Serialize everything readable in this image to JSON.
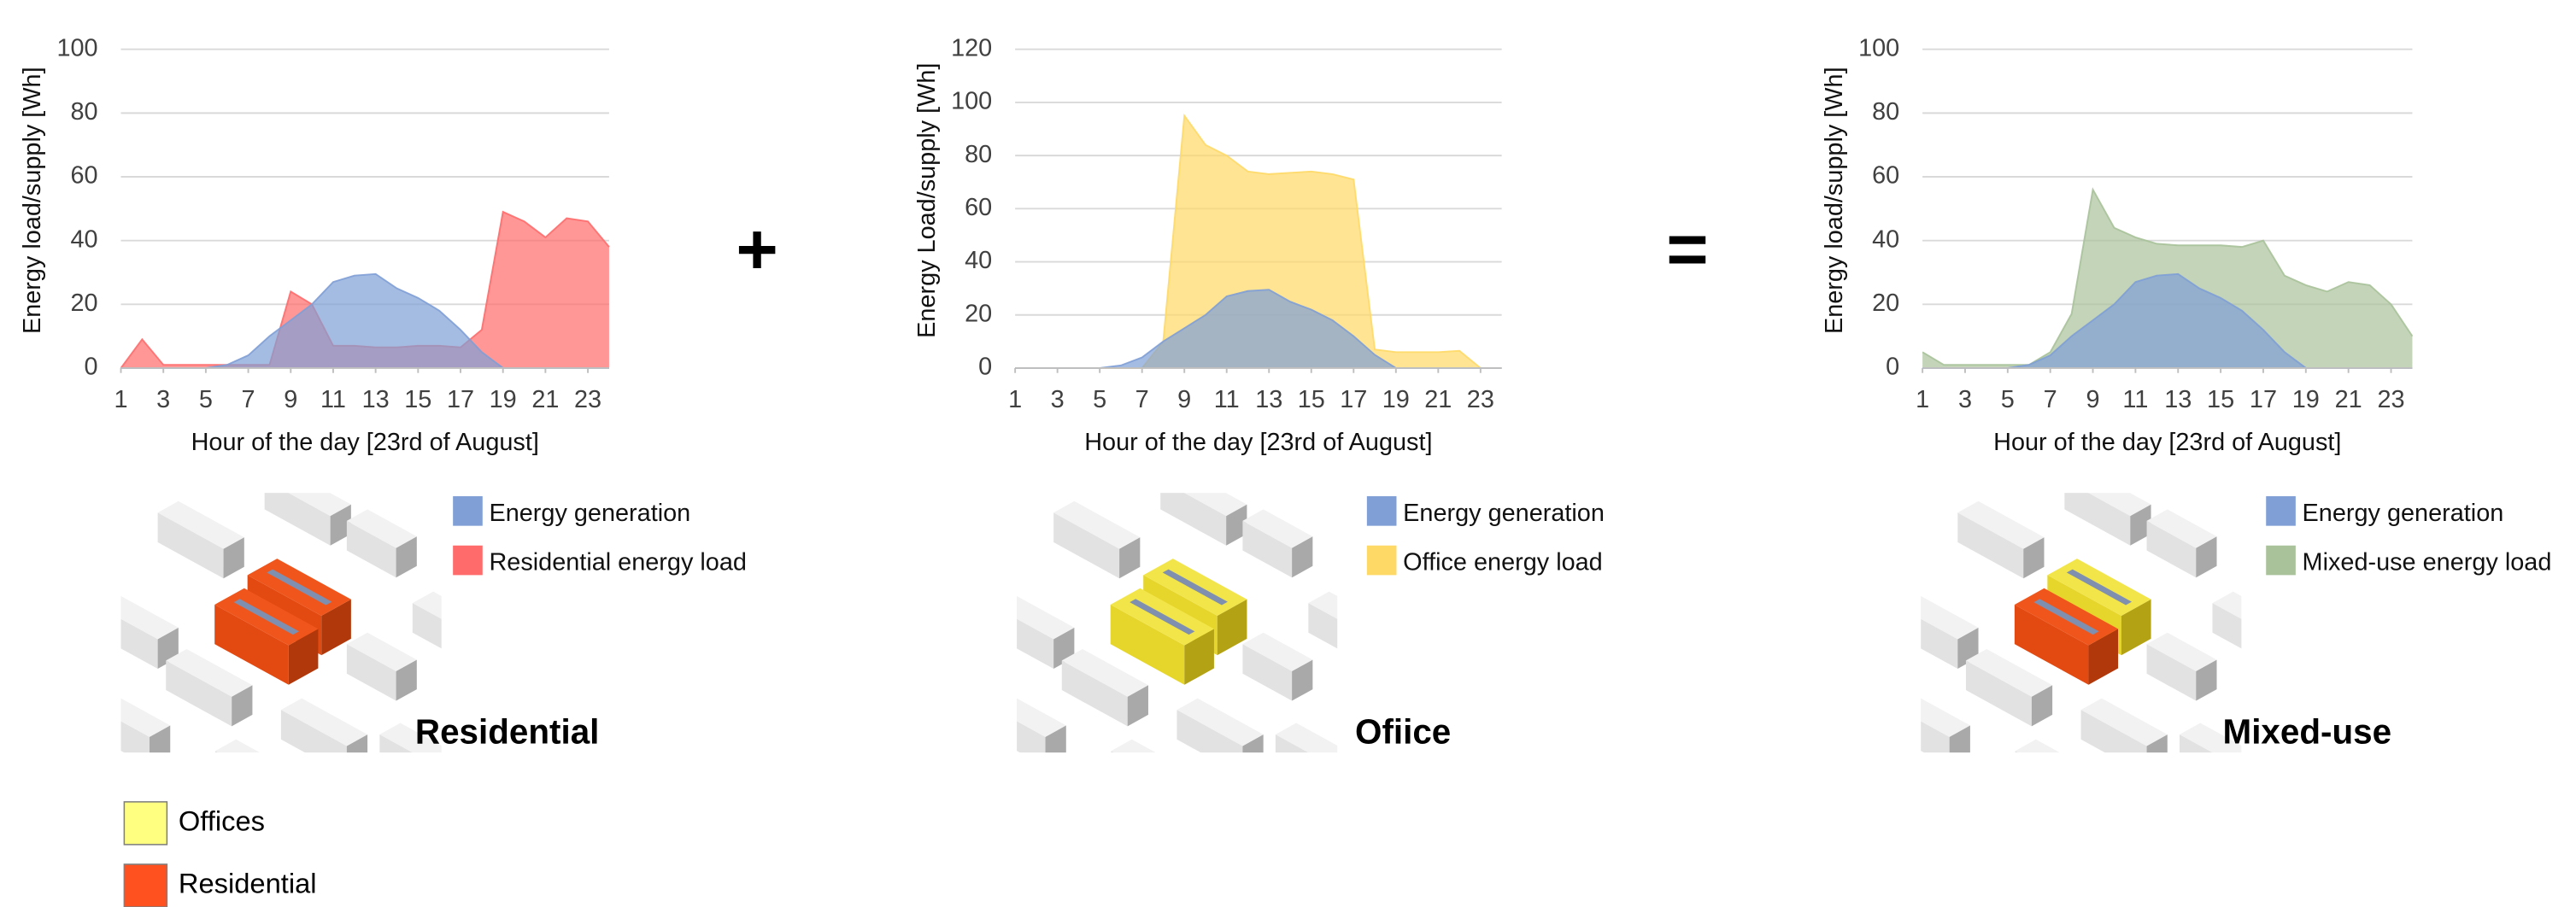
{
  "chart_data": [
    {
      "type": "area",
      "y_label": "Energy load/supply [Wh]",
      "x_label": "Hour of the day [23rd of August]",
      "x": [
        1,
        2,
        3,
        4,
        5,
        6,
        7,
        8,
        9,
        10,
        11,
        12,
        13,
        14,
        15,
        16,
        17,
        18,
        19,
        20,
        21,
        22,
        23,
        24
      ],
      "xlim": [
        1,
        24
      ],
      "xticks": [
        1,
        3,
        5,
        7,
        9,
        11,
        13,
        15,
        17,
        19,
        21,
        23
      ],
      "ylim": [
        0,
        100
      ],
      "yticks": [
        0,
        20,
        40,
        60,
        80,
        100
      ],
      "grid": true,
      "series": [
        {
          "name": "Energy generation",
          "color": "#7f9fd6",
          "values": [
            0,
            0,
            0,
            0,
            0,
            1,
            4,
            10,
            15,
            20,
            27,
            29,
            29.5,
            25,
            22,
            18,
            12,
            5,
            0,
            0,
            0,
            0,
            0,
            0
          ]
        },
        {
          "name": "Residential energy load",
          "color": "#ff6b6b",
          "values": [
            0,
            9,
            1,
            1,
            1,
            1,
            1,
            1,
            24,
            20,
            7,
            7,
            6.5,
            6.5,
            7,
            7,
            6.5,
            12,
            49,
            46,
            41,
            47,
            46,
            38
          ]
        }
      ]
    },
    {
      "type": "area",
      "y_label": "Energy Load/supply [Wh]",
      "x_label": "Hour of the day [23rd of August]",
      "x": [
        1,
        2,
        3,
        4,
        5,
        6,
        7,
        8,
        9,
        10,
        11,
        12,
        13,
        14,
        15,
        16,
        17,
        18,
        19,
        20,
        21,
        22,
        23,
        24
      ],
      "xlim": [
        1,
        24
      ],
      "xticks": [
        1,
        3,
        5,
        7,
        9,
        11,
        13,
        15,
        17,
        19,
        21,
        23
      ],
      "ylim": [
        0,
        120
      ],
      "yticks": [
        0,
        20,
        40,
        60,
        80,
        100,
        120
      ],
      "grid": true,
      "series": [
        {
          "name": "Energy generation",
          "color": "#7f9fd6",
          "values": [
            0,
            0,
            0,
            0,
            0,
            1,
            4,
            10,
            15,
            20,
            27,
            29,
            29.5,
            25,
            22,
            18,
            12,
            5,
            0,
            0,
            0,
            0,
            0,
            0
          ]
        },
        {
          "name": "Office energy load",
          "color": "#ffd966",
          "values": [
            0,
            0,
            0,
            0,
            0,
            0,
            0,
            10,
            95,
            84,
            80,
            74,
            73,
            73.5,
            74,
            73,
            71,
            7,
            6,
            6,
            6,
            6.5,
            0,
            0
          ]
        }
      ]
    },
    {
      "type": "area",
      "y_label": "Energy load/supply [Wh]",
      "x_label": "Hour of the day [23rd of August]",
      "x": [
        1,
        2,
        3,
        4,
        5,
        6,
        7,
        8,
        9,
        10,
        11,
        12,
        13,
        14,
        15,
        16,
        17,
        18,
        19,
        20,
        21,
        22,
        23,
        24
      ],
      "xlim": [
        1,
        24
      ],
      "xticks": [
        1,
        3,
        5,
        7,
        9,
        11,
        13,
        15,
        17,
        19,
        21,
        23
      ],
      "ylim": [
        0,
        100
      ],
      "yticks": [
        0,
        20,
        40,
        60,
        80,
        100
      ],
      "grid": true,
      "series": [
        {
          "name": "Energy generation",
          "color": "#7f9fd6",
          "values": [
            0,
            0,
            0,
            0,
            0,
            1,
            4,
            10,
            15,
            20,
            27,
            29,
            29.5,
            25,
            22,
            18,
            12,
            5,
            0,
            0,
            0,
            0,
            0,
            0
          ]
        },
        {
          "name": "Mixed-use energy load",
          "color": "#a9c29a",
          "values": [
            5,
            1,
            1,
            1,
            1,
            1,
            5,
            17,
            56,
            44,
            41,
            39,
            38.5,
            38.5,
            38.5,
            38,
            40,
            29,
            26,
            24,
            27,
            26,
            20,
            10
          ]
        }
      ]
    }
  ],
  "illustrations": [
    {
      "label": "Residential"
    },
    {
      "label": "Ofiice"
    },
    {
      "label": "Mixed-use"
    }
  ],
  "operators": [
    "+",
    "="
  ],
  "key": [
    {
      "label": "Offices",
      "color": "#ffff80"
    },
    {
      "label": "Residential",
      "color": "#ff5020"
    }
  ]
}
